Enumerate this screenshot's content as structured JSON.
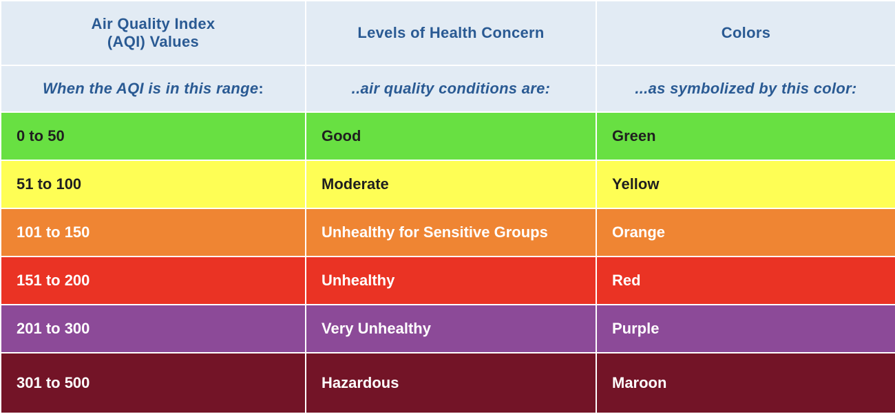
{
  "table": {
    "headers": [
      [
        "Air Quality Index",
        "(AQI) Values"
      ],
      [
        "Levels of Health Concern"
      ],
      [
        "Colors"
      ]
    ],
    "subheaders": [
      {
        "text": "When the AQI is in this range",
        "suffix": ":"
      },
      {
        "text": "..air quality conditions are:",
        "suffix": ""
      },
      {
        "text": "...as symbolized by this color:",
        "suffix": ""
      }
    ],
    "rows": [
      {
        "range": "0 to 50",
        "level": "Good",
        "color_name": "Green",
        "bg": "#68e042",
        "fg": "#1f1f1f"
      },
      {
        "range": "51 to 100",
        "level": "Moderate",
        "color_name": "Yellow",
        "bg": "#fefe55",
        "fg": "#1f1f1f"
      },
      {
        "range": "101 to 150",
        "level": "Unhealthy for Sensitive Groups",
        "color_name": "Orange",
        "bg": "#ef8533",
        "fg": "#ffffff"
      },
      {
        "range": "151 to 200",
        "level": "Unhealthy",
        "color_name": "Red",
        "bg": "#ea3324",
        "fg": "#ffffff"
      },
      {
        "range": "201 to 300",
        "level": "Very Unhealthy",
        "color_name": "Purple",
        "bg": "#8c4a98",
        "fg": "#ffffff"
      },
      {
        "range": "301 to 500",
        "level": "Hazardous",
        "color_name": "Maroon",
        "bg": "#731427",
        "fg": "#ffffff"
      }
    ]
  }
}
